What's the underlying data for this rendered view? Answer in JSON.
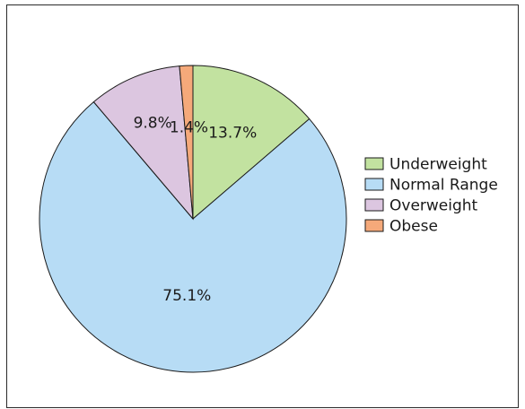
{
  "chart_data": {
    "type": "pie",
    "title": "",
    "slices": [
      {
        "label": "Underweight",
        "value": 13.7,
        "display": "13.7%",
        "color": "#c2e2a0"
      },
      {
        "label": "Normal Range",
        "value": 75.1,
        "display": "75.1%",
        "color": "#b7dcf5"
      },
      {
        "label": "Overweight",
        "value": 9.8,
        "display": "9.8%",
        "color": "#dcc6e0"
      },
      {
        "label": "Obese",
        "value": 1.4,
        "display": "1.4%",
        "color": "#f5a97a"
      }
    ],
    "start_angle": "12 o'clock",
    "direction": "clockwise",
    "legend_position": "right"
  }
}
